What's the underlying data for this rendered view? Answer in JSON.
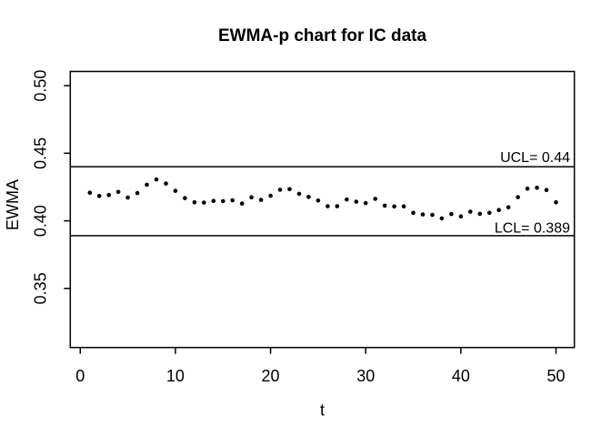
{
  "title": "EWMA-p chart for IC data",
  "axes": {
    "xlabel": "t",
    "ylabel": "EWMA",
    "x_ticks": [
      0,
      10,
      20,
      30,
      40,
      50
    ],
    "x_tick_labels": [
      "0",
      "10",
      "20",
      "30",
      "40",
      "50"
    ],
    "y_ticks": [
      0.35,
      0.4,
      0.45,
      0.5
    ],
    "y_tick_labels": [
      "0.35",
      "0.40",
      "0.45",
      "0.50"
    ]
  },
  "control_limits": {
    "ucl": 0.44,
    "lcl": 0.389,
    "ucl_label": "UCL= 0.44",
    "lcl_label": "LCL= 0.389"
  },
  "chart_data": {
    "type": "scatter",
    "title": "EWMA-p chart for IC data",
    "xlabel": "t",
    "ylabel": "EWMA",
    "marker": "filled-circle",
    "color": "#000000",
    "grid": false,
    "xlim": [
      -1.05,
      51.93
    ],
    "ylim": [
      0.3063,
      0.5105
    ],
    "ucl": 0.44,
    "lcl": 0.389,
    "x": [
      1,
      2,
      3,
      4,
      5,
      6,
      7,
      8,
      9,
      10,
      11,
      12,
      13,
      14,
      15,
      16,
      17,
      18,
      19,
      20,
      21,
      22,
      23,
      24,
      25,
      26,
      27,
      28,
      29,
      30,
      31,
      32,
      33,
      34,
      35,
      36,
      37,
      38,
      39,
      40,
      41,
      42,
      43,
      44,
      45,
      46,
      47,
      48,
      49,
      50
    ],
    "y": [
      0.4208,
      0.4184,
      0.4191,
      0.4214,
      0.4172,
      0.4205,
      0.4267,
      0.4306,
      0.4276,
      0.4222,
      0.4168,
      0.4137,
      0.4135,
      0.4147,
      0.4146,
      0.4152,
      0.4128,
      0.4174,
      0.4155,
      0.4186,
      0.423,
      0.4234,
      0.42,
      0.4177,
      0.415,
      0.4108,
      0.4108,
      0.4158,
      0.4142,
      0.4131,
      0.4163,
      0.4112,
      0.4106,
      0.4107,
      0.4059,
      0.4047,
      0.4044,
      0.4018,
      0.405,
      0.4033,
      0.4068,
      0.4052,
      0.4059,
      0.408,
      0.41,
      0.4175,
      0.4238,
      0.4245,
      0.4228,
      0.4137
    ]
  }
}
